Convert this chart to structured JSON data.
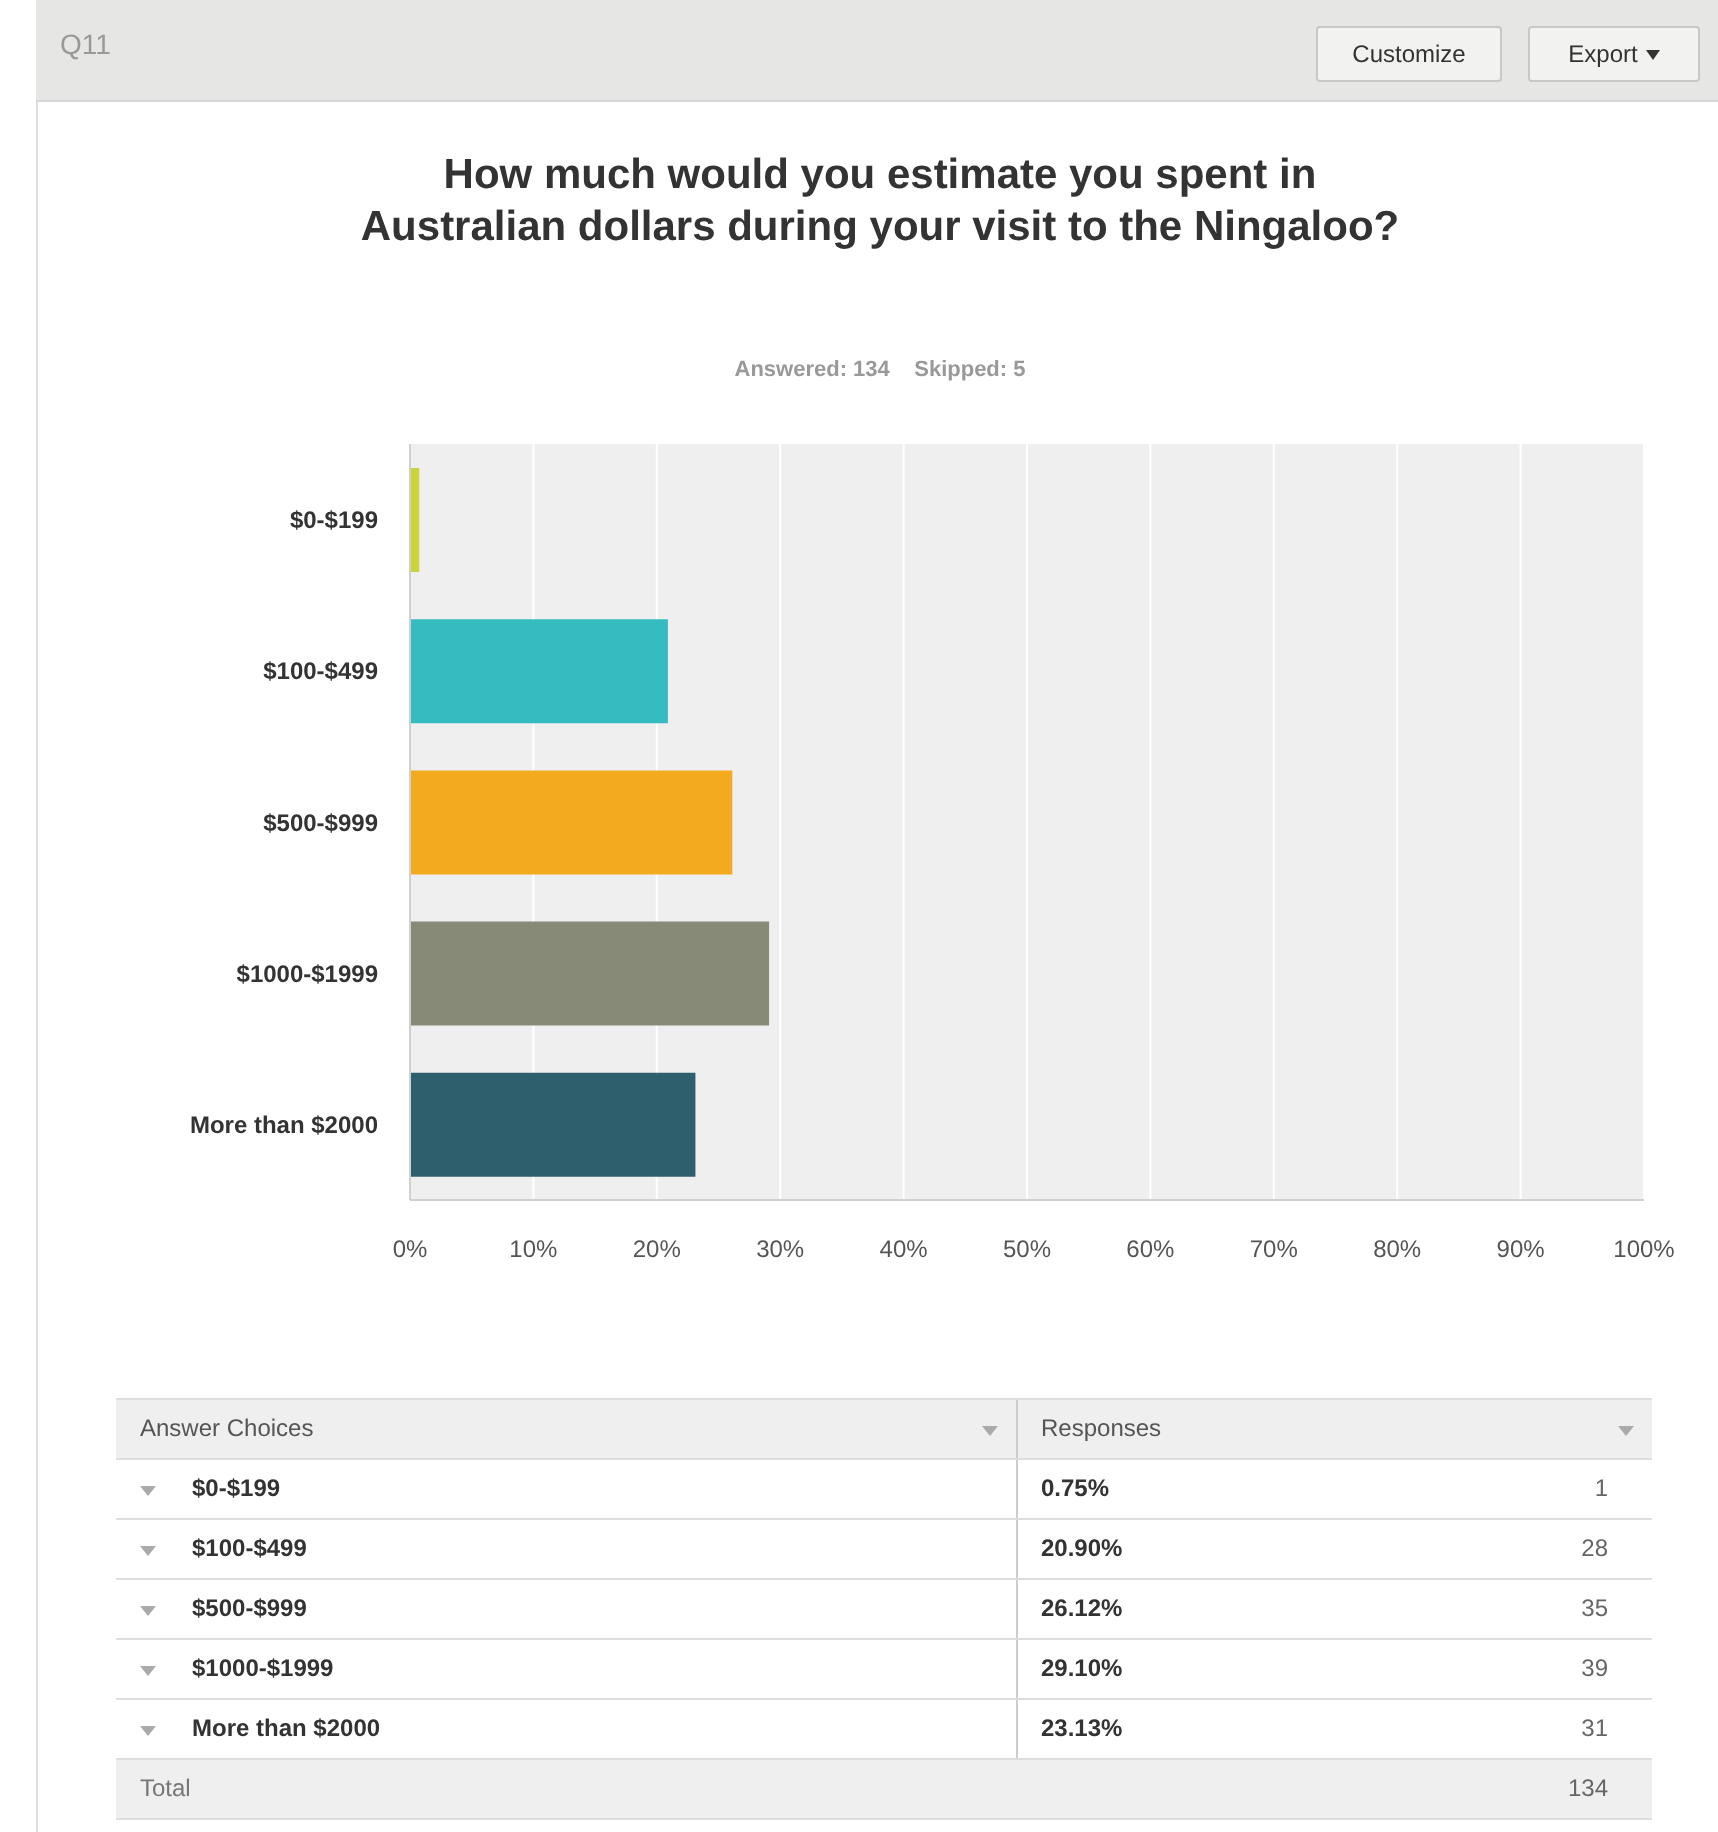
{
  "chart_data": {
    "type": "bar",
    "orientation": "horizontal",
    "title": "How much would you estimate you spent in Australian dollars during your visit to the Ningaloo?",
    "subtitle": "Answered: 134    Skipped: 5",
    "categories": [
      "$0-$199",
      "$100-$499",
      "$500-$999",
      "$1000-$1999",
      "More than $2000"
    ],
    "values": [
      0.75,
      20.9,
      26.12,
      29.1,
      23.13
    ],
    "colors": [
      "#c9d33a",
      "#35bcc1",
      "#f4aa1f",
      "#888a78",
      "#2e5f6c"
    ],
    "xlim": [
      0,
      100
    ],
    "xticks": [
      {
        "value": 0,
        "label": "0%"
      },
      {
        "value": 10,
        "label": "10%"
      },
      {
        "value": 20,
        "label": "20%"
      },
      {
        "value": 30,
        "label": "30%"
      },
      {
        "value": 40,
        "label": "40%"
      },
      {
        "value": 50,
        "label": "50%"
      },
      {
        "value": 60,
        "label": "60%"
      },
      {
        "value": 70,
        "label": "70%"
      },
      {
        "value": 80,
        "label": "80%"
      },
      {
        "value": 90,
        "label": "90%"
      },
      {
        "value": 100,
        "label": "100%"
      }
    ],
    "grid": "x",
    "legend": false,
    "annotations": [
      "Q11",
      "Customize",
      "Export",
      "Answer Choices",
      "Responses",
      "1",
      "28",
      "35",
      "39",
      "31",
      "Total",
      "134",
      "0.75%",
      "20.90%",
      "26.12%",
      "29.10%",
      "23.13%"
    ]
  }
}
